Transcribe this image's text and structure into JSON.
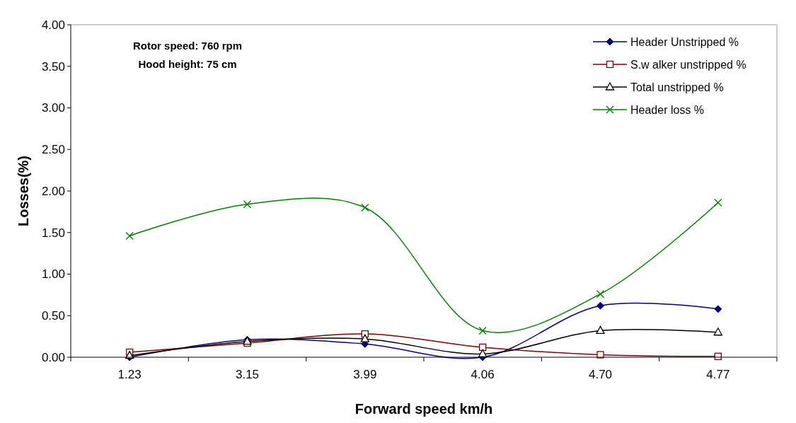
{
  "chart_data": {
    "type": "line",
    "xlabel": "Forward speed km/h",
    "ylabel": "Losses(%)",
    "categories": [
      "1.23",
      "3.15",
      "3.99",
      "4.06",
      "4.70",
      "4.77"
    ],
    "ylim": [
      0,
      4
    ],
    "yticks": [
      {
        "value": 0,
        "label": "0.00"
      },
      {
        "value": 0.5,
        "label": "0.50"
      },
      {
        "value": 1,
        "label": "1.00"
      },
      {
        "value": 1.5,
        "label": "1.50"
      },
      {
        "value": 2,
        "label": "2.00"
      },
      {
        "value": 2.5,
        "label": "2.50"
      },
      {
        "value": 3,
        "label": "3.00"
      },
      {
        "value": 3.5,
        "label": "3.50"
      },
      {
        "value": 4,
        "label": "4.00"
      }
    ],
    "legend": "top right",
    "annotations": [
      "Rotor speed: 760 rpm",
      "Hood height: 75 cm"
    ],
    "series": [
      {
        "name": "Header Unstripped %",
        "color": "#000080",
        "marker": "diamond",
        "values": [
          0,
          0.21,
          0.16,
          0,
          0.62,
          0.58
        ]
      },
      {
        "name": "S.w alker unstripped %",
        "color": "#800000",
        "marker": "square",
        "values": [
          0.06,
          0.17,
          0.28,
          0.12,
          0.03,
          0.01
        ]
      },
      {
        "name": "Total unstripped %",
        "color": "#000000",
        "marker": "triangle",
        "values": [
          0.02,
          0.19,
          0.22,
          0.04,
          0.32,
          0.3
        ]
      },
      {
        "name": " Header loss %",
        "color": "#008000",
        "marker": "cross",
        "values": [
          1.46,
          1.84,
          1.8,
          0.32,
          0.76,
          1.86
        ]
      }
    ]
  }
}
